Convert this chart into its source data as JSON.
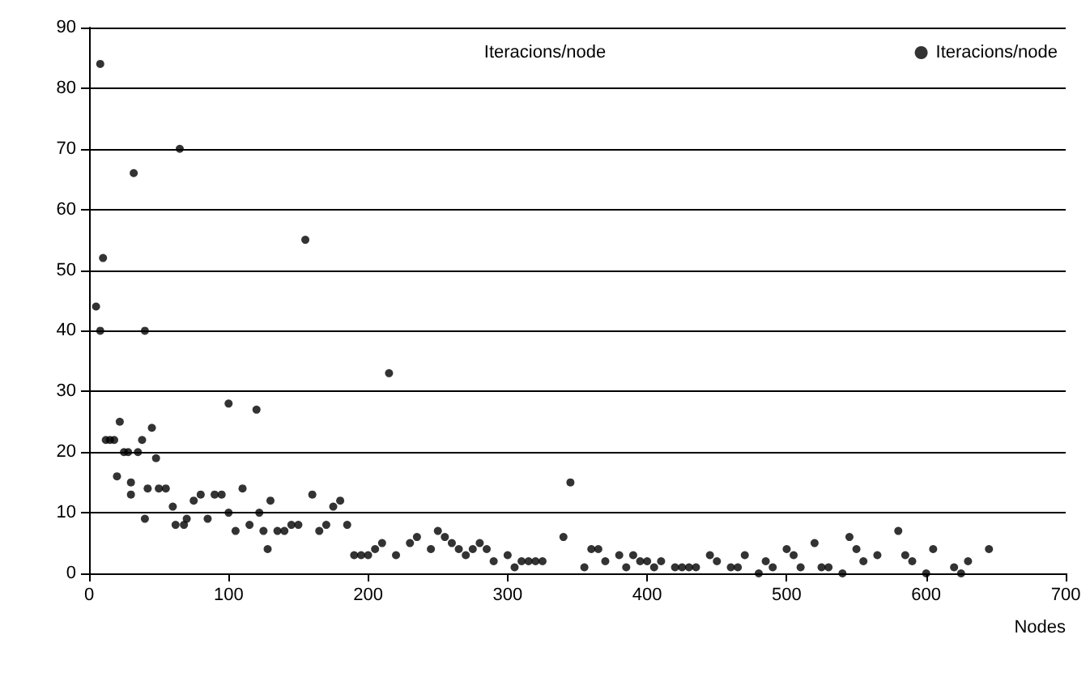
{
  "chart_data": {
    "type": "scatter",
    "title": "Iteracions/node",
    "xlabel": "Nodes",
    "legend": "top right",
    "grid": "y",
    "marker": "circle",
    "xlim": [
      0,
      700
    ],
    "xticks": [
      0,
      100,
      200,
      300,
      400,
      500,
      600,
      700
    ],
    "ylim": [
      0,
      90
    ],
    "yticks": [
      0,
      10,
      20,
      30,
      40,
      50,
      60,
      70,
      80,
      90
    ],
    "series": [
      {
        "name": "Iteracions/node",
        "color": "#000000",
        "x": [
          5,
          8,
          10,
          8,
          12,
          15,
          18,
          20,
          22,
          25,
          28,
          30,
          30,
          32,
          35,
          38,
          40,
          40,
          42,
          45,
          48,
          50,
          55,
          60,
          62,
          65,
          68,
          70,
          75,
          80,
          85,
          90,
          95,
          100,
          100,
          105,
          110,
          115,
          120,
          122,
          125,
          128,
          130,
          135,
          140,
          145,
          150,
          155,
          160,
          165,
          170,
          175,
          180,
          185,
          190,
          195,
          200,
          205,
          210,
          215,
          220,
          230,
          235,
          245,
          250,
          255,
          260,
          265,
          270,
          275,
          280,
          285,
          290,
          300,
          305,
          310,
          315,
          320,
          325,
          340,
          345,
          355,
          360,
          365,
          370,
          380,
          385,
          390,
          395,
          400,
          405,
          410,
          420,
          425,
          430,
          435,
          445,
          450,
          460,
          465,
          470,
          480,
          485,
          490,
          500,
          505,
          510,
          520,
          525,
          530,
          540,
          545,
          550,
          555,
          565,
          580,
          585,
          590,
          600,
          605,
          620,
          625,
          630,
          645
        ],
        "values": [
          44,
          84,
          52,
          40,
          22,
          22,
          22,
          16,
          25,
          20,
          20,
          13,
          15,
          66,
          20,
          22,
          9,
          40,
          14,
          24,
          19,
          14,
          14,
          11,
          8,
          70,
          8,
          9,
          12,
          13,
          9,
          13,
          13,
          28,
          10,
          7,
          14,
          8,
          27,
          10,
          7,
          4,
          12,
          7,
          7,
          8,
          8,
          55,
          13,
          7,
          8,
          11,
          12,
          8,
          3,
          3,
          3,
          4,
          5,
          33,
          3,
          5,
          6,
          4,
          7,
          6,
          5,
          4,
          3,
          4,
          5,
          4,
          2,
          3,
          1,
          2,
          2,
          2,
          2,
          6,
          15,
          1,
          4,
          4,
          2,
          3,
          1,
          3,
          2,
          2,
          1,
          2,
          1,
          1,
          1,
          1,
          3,
          2,
          1,
          1,
          3,
          0,
          2,
          1,
          4,
          3,
          1,
          5,
          1,
          1,
          0,
          6,
          4,
          2,
          3,
          7,
          3,
          2,
          0,
          4,
          1,
          0,
          2,
          4
        ]
      }
    ]
  }
}
